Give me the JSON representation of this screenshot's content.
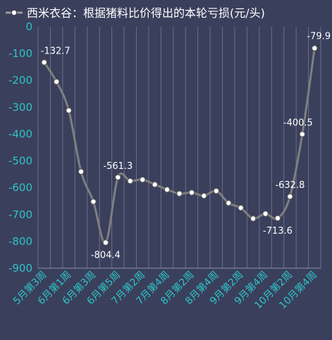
{
  "chart_data": {
    "type": "line",
    "title": "西米衣谷：根据猪料比价得出的本轮亏损(元/头)",
    "legend_position": "top",
    "grid": true,
    "ylim": [
      -900,
      0
    ],
    "yticks": [
      0,
      -100,
      -200,
      -300,
      -400,
      -500,
      -600,
      -700,
      -800,
      -900
    ],
    "colors": {
      "background": "#3a3f5c",
      "line": "#7f7f7f",
      "tick_text": "#2ec4c4",
      "label_text": "#ffffff"
    },
    "x_tick_labels": [
      "5月第3周",
      "6月第1周",
      "6月第3周",
      "6月第5周",
      "7月第2周",
      "7月第4周",
      "8月第2周",
      "8月第4周",
      "9月第2周",
      "9月第4周",
      "10月第2周",
      "10月第4周"
    ],
    "series": [
      {
        "name": "西米衣谷：根据猪料比价得出的本轮亏损(元/头)",
        "values": [
          -132.7,
          -205,
          -312,
          -540,
          -652,
          -804.4,
          -561.3,
          -575,
          -570,
          -588,
          -607,
          -622,
          -618,
          -630,
          -612,
          -657,
          -675,
          -715,
          -697,
          -713.6,
          -632.8,
          -400.5,
          -79.9
        ]
      }
    ],
    "data_labels": [
      {
        "index": 0,
        "text": "-132.7"
      },
      {
        "index": 5,
        "text": "-804.4"
      },
      {
        "index": 6,
        "text": "-561.3"
      },
      {
        "index": 19,
        "text": "-713.6"
      },
      {
        "index": 20,
        "text": "-632.8"
      },
      {
        "index": 21,
        "text": "-400.5"
      },
      {
        "index": 22,
        "text": "-79.9"
      }
    ]
  }
}
